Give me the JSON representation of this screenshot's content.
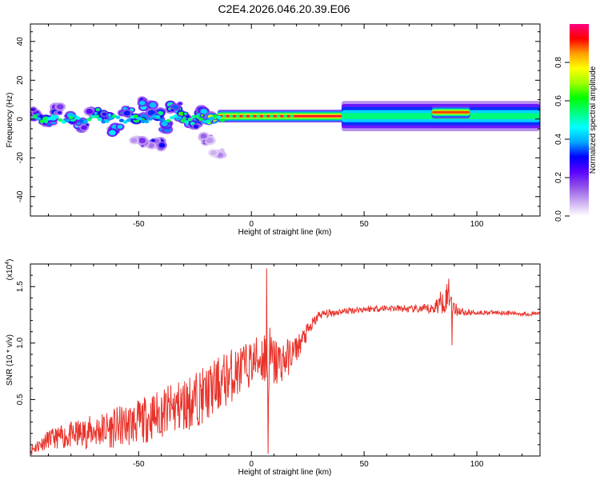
{
  "title": "C2E4.2026.046.20.39.E06",
  "colors": {
    "snr_line": "#e8332b",
    "axis": "#000000",
    "background": "#ffffff"
  },
  "chart_data": [
    {
      "type": "heatmap",
      "name": "spectrogram",
      "xlabel": "Height of straight line (km)",
      "ylabel": "Frequency (Hz)",
      "xlim": [
        -98,
        128
      ],
      "ylim": [
        -50,
        49
      ],
      "xticks": [
        -50,
        0,
        50,
        100
      ],
      "yticks": [
        -40,
        -20,
        0,
        20,
        40
      ],
      "colorbar": {
        "label": "Normalized spectral amplitude",
        "range": [
          0,
          1
        ],
        "ticks": [
          "0.0",
          "0.2",
          "0.4",
          "0.6",
          "0.8"
        ],
        "tick_values": [
          0.0,
          0.2,
          0.4,
          0.6,
          0.8
        ],
        "colormap": [
          "#ffffff",
          "#c8a8f0",
          "#9050e8",
          "#5a00ff",
          "#0000ff",
          "#00a8ff",
          "#00ffff",
          "#00ff80",
          "#00ff00",
          "#a0ff00",
          "#ffff00",
          "#ffa000",
          "#ff0000",
          "#ff0080"
        ]
      },
      "blobs": [
        {
          "x": -95,
          "f": 3,
          "amp": 0.35
        },
        {
          "x": -90,
          "f": -1,
          "amp": 0.45
        },
        {
          "x": -85,
          "f": 5,
          "amp": 0.3
        },
        {
          "x": -80,
          "f": 0,
          "amp": 0.5
        },
        {
          "x": -75,
          "f": -3,
          "amp": 0.35
        },
        {
          "x": -70,
          "f": 3,
          "amp": 0.45
        },
        {
          "x": -65,
          "f": 1,
          "amp": 0.5
        },
        {
          "x": -60,
          "f": -5,
          "amp": 0.35
        },
        {
          "x": -55,
          "f": 4,
          "amp": 0.45
        },
        {
          "x": -50,
          "f": 0,
          "amp": 0.55
        },
        {
          "x": -46,
          "f": 8,
          "amp": 0.4
        },
        {
          "x": -42,
          "f": 2,
          "amp": 0.55
        },
        {
          "x": -38,
          "f": -4,
          "amp": 0.4
        },
        {
          "x": -34,
          "f": 6,
          "amp": 0.45
        },
        {
          "x": -30,
          "f": 1,
          "amp": 0.5
        },
        {
          "x": -26,
          "f": -2,
          "amp": 0.4
        },
        {
          "x": -22,
          "f": 3,
          "amp": 0.55
        },
        {
          "x": -18,
          "f": 0,
          "amp": 0.6
        },
        {
          "x": -42,
          "f": -13,
          "amp": 0.25
        },
        {
          "x": -50,
          "f": -12,
          "amp": 0.15
        },
        {
          "x": -20,
          "f": -10,
          "amp": 0.15
        },
        {
          "x": -15,
          "f": -17,
          "amp": 0.1
        }
      ],
      "bands": [
        {
          "x0": -15,
          "x1": 128,
          "f": 1.5,
          "amp": 0.95,
          "width": 2.5
        },
        {
          "x0": 40,
          "x1": 128,
          "f": 1.5,
          "amp": 0.55,
          "width": 6
        },
        {
          "x0": 80,
          "x1": 97,
          "f": 3.5,
          "amp": 0.9,
          "width": 2.5
        }
      ]
    },
    {
      "type": "line",
      "name": "snr",
      "xlabel": "Height of straight line (km)",
      "ylabel": "SNR (10 * v/v)",
      "y_multiplier": "(x10",
      "y_multiplier_exponent": "4",
      "y_multiplier_close": ")",
      "xlim": [
        -98,
        128
      ],
      "ylim": [
        0,
        1.7
      ],
      "xticks": [
        -50,
        0,
        50,
        100
      ],
      "yticks": [
        0.5,
        1.0,
        1.5
      ],
      "ytick_labels": [
        "0.5",
        "1.0",
        "1.5"
      ],
      "series": [
        {
          "name": "SNR",
          "x": [
            -98,
            -90,
            -80,
            -70,
            -60,
            -50,
            -40,
            -30,
            -20,
            -10,
            0,
            5,
            7,
            10,
            15,
            20,
            25,
            30,
            40,
            50,
            60,
            70,
            80,
            85,
            88,
            90,
            95,
            100,
            110,
            120,
            128
          ],
          "y": [
            0.05,
            0.15,
            0.18,
            0.22,
            0.25,
            0.3,
            0.38,
            0.45,
            0.55,
            0.7,
            0.82,
            0.88,
            0.85,
            0.82,
            0.85,
            0.95,
            1.1,
            1.25,
            1.28,
            1.3,
            1.31,
            1.3,
            1.3,
            1.38,
            1.42,
            1.3,
            1.27,
            1.27,
            1.27,
            1.26,
            1.26
          ],
          "noise": [
            0.05,
            0.08,
            0.12,
            0.15,
            0.18,
            0.2,
            0.22,
            0.25,
            0.25,
            0.25,
            0.2,
            0.25,
            0.4,
            0.25,
            0.18,
            0.12,
            0.08,
            0.04,
            0.03,
            0.03,
            0.03,
            0.03,
            0.05,
            0.12,
            0.15,
            0.06,
            0.03,
            0.02,
            0.02,
            0.02,
            0.02
          ],
          "spikes": [
            {
              "x": 6.8,
              "y": 1.66
            },
            {
              "x": 7.4,
              "y": 0.02
            },
            {
              "x": 87.5,
              "y": 1.57
            },
            {
              "x": 89,
              "y": 0.98
            }
          ]
        }
      ]
    }
  ]
}
